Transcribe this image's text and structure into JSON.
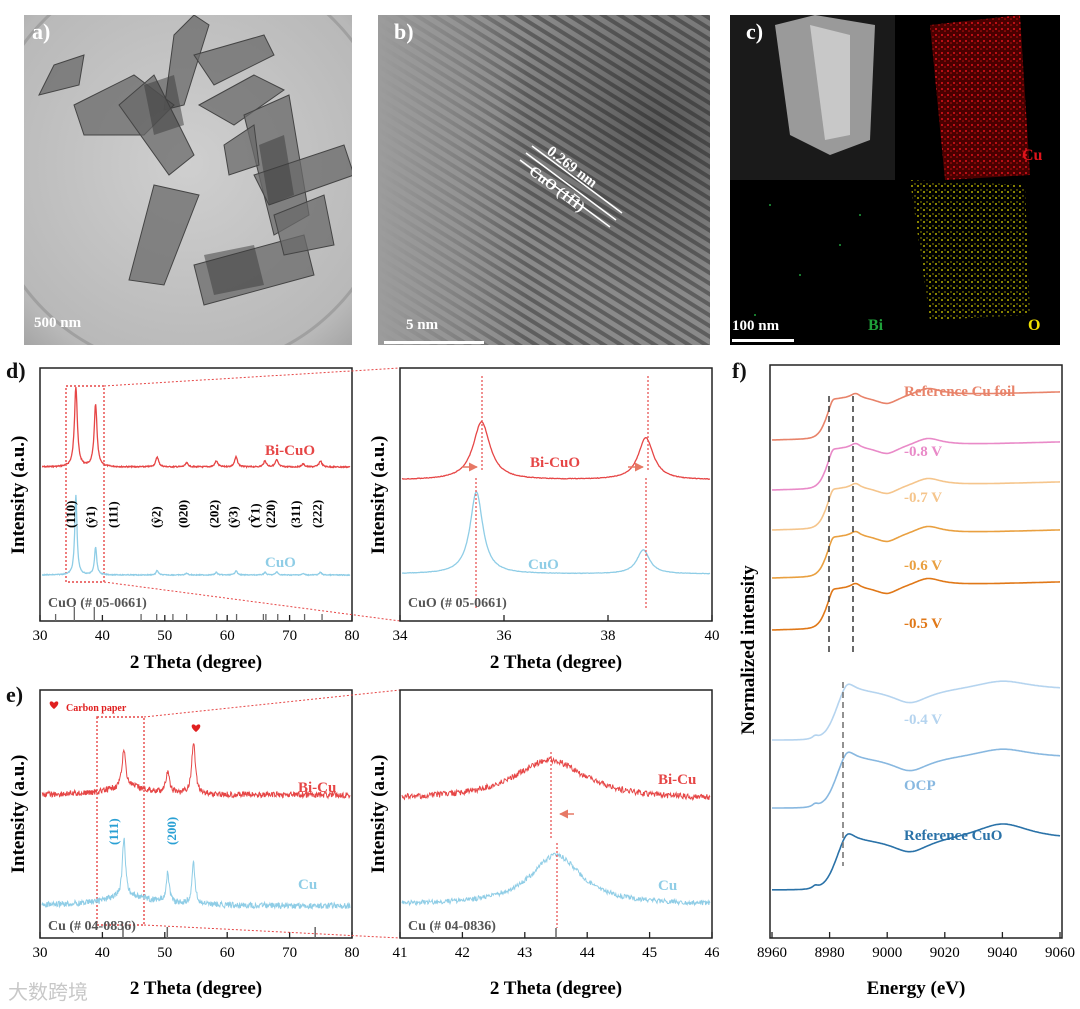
{
  "panels": {
    "a": {
      "label": "a)",
      "scalebar": "500 nm"
    },
    "b": {
      "label": "b)",
      "scalebar": "5 nm",
      "annotation_top": "0.269 nm",
      "annotation_bottom": "CuO (11̅1)"
    },
    "c": {
      "label": "c)",
      "scalebar": "100 nm",
      "maps": [
        {
          "el": "Cu",
          "color": "#e0141c"
        },
        {
          "el": "Bi",
          "color": "#1fa03a"
        },
        {
          "el": "O",
          "color": "#f0e000"
        }
      ]
    },
    "d": {
      "label": "d)"
    },
    "e": {
      "label": "e)"
    },
    "f": {
      "label": "f)"
    }
  },
  "watermark": "大数跨境",
  "colors": {
    "red": "#e64646",
    "blue": "#8fcde6",
    "gray": "#555555",
    "dash": "#e64646"
  },
  "chart_data": [
    {
      "id": "d-left",
      "type": "line",
      "xlabel": "2 Theta (degree)",
      "ylabel": "Intensity (a.u.)",
      "xlim": [
        30,
        80
      ],
      "xticks": [
        30,
        40,
        50,
        60,
        70,
        80
      ],
      "series": [
        {
          "name": "Bi-CuO",
          "color": "#e64646"
        },
        {
          "name": "CuO",
          "color": "#8fcde6"
        }
      ],
      "peaks": [
        35.5,
        38.7,
        48.7,
        53.5,
        58.3,
        61.5,
        66.2,
        68.1,
        72.4,
        75.2
      ],
      "planes": [
        "(110)",
        "(ŷ1)",
        "(111)",
        "(ŷ2)",
        "(020)",
        "(202)",
        "(ŷ3)",
        "(Ŷ1)",
        "(220)",
        "(311)",
        "(222)"
      ],
      "reference": "CuO (# 05-0661)",
      "ref_lines": [
        32.5,
        35.5,
        38.7,
        46.2,
        48.7,
        51.3,
        53.5,
        58.3,
        61.5,
        65.8,
        66.2,
        68.1,
        72.4,
        75.2
      ]
    },
    {
      "id": "d-right",
      "type": "line",
      "xlabel": "2 Theta (degree)",
      "ylabel": "Intensity (a.u.)",
      "xlim": [
        34,
        40
      ],
      "xticks": [
        34,
        36,
        38,
        40
      ],
      "series": [
        {
          "name": "Bi-CuO",
          "peaks": [
            35.55,
            38.75
          ]
        },
        {
          "name": "CuO",
          "peaks": [
            35.45,
            38.7
          ]
        }
      ],
      "reference": "CuO (# 05-0661)"
    },
    {
      "id": "e-left",
      "type": "line",
      "xlabel": "2 Theta (degree)",
      "ylabel": "Intensity (a.u.)",
      "xlim": [
        30,
        80
      ],
      "xticks": [
        30,
        40,
        50,
        60,
        70,
        80
      ],
      "series": [
        {
          "name": "Bi-Cu",
          "color": "#e64646"
        },
        {
          "name": "Cu",
          "color": "#8fcde6"
        }
      ],
      "peaks": [
        43.3,
        50.4,
        54.6
      ],
      "planes": [
        "(111)",
        "(200)"
      ],
      "legend": "Carbon paper",
      "reference": "Cu (# 04-0836)",
      "ref_lines": [
        43.3,
        50.4,
        74.1
      ]
    },
    {
      "id": "e-right",
      "type": "line",
      "xlabel": "2 Theta (degree)",
      "ylabel": "Intensity (a.u.)",
      "xlim": [
        41,
        46
      ],
      "xticks": [
        41,
        42,
        43,
        44,
        45,
        46
      ],
      "series": [
        {
          "name": "Bi-Cu",
          "peak": 43.4
        },
        {
          "name": "Cu",
          "peak": 43.5
        }
      ],
      "reference": "Cu (# 04-0836)"
    },
    {
      "id": "f",
      "type": "line",
      "xlabel": "Energy (eV)",
      "ylabel": "Normalized intensity",
      "xlim": [
        8960,
        9060
      ],
      "xticks": [
        8960,
        8980,
        9000,
        9020,
        9040,
        9060
      ],
      "series": [
        {
          "name": "Reference Cu foil",
          "color": "#e8836a"
        },
        {
          "name": "-0.8 V",
          "color": "#e98ac8"
        },
        {
          "name": "-0.7 V",
          "color": "#f5c58c"
        },
        {
          "name": "-0.6 V",
          "color": "#e9a040"
        },
        {
          "name": "-0.5 V",
          "color": "#e07818"
        },
        {
          "name": "-0.4 V",
          "color": "#b5d4ef"
        },
        {
          "name": "OCP",
          "color": "#88b8e0"
        },
        {
          "name": "Reference CuO",
          "color": "#2a72a8"
        }
      ],
      "dashed_lines": [
        8981,
        8989,
        8985
      ]
    }
  ]
}
